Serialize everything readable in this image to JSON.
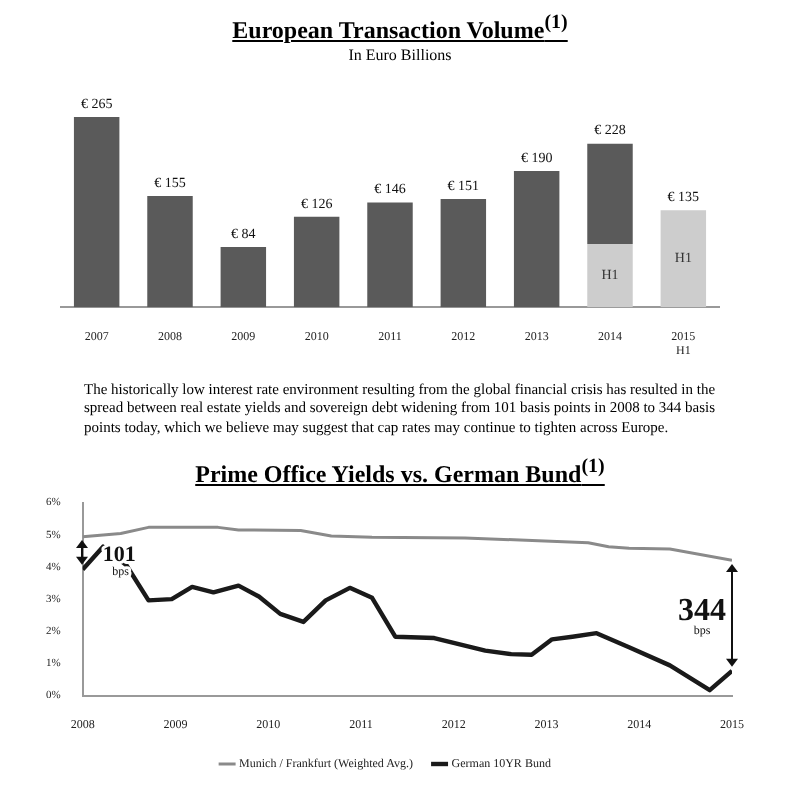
{
  "chart_data": [
    {
      "type": "bar",
      "title": "European Transaction Volume$^{(1)}$",
      "subtitle": "In Euro Billions",
      "stacked": true,
      "categories": [
        "2007",
        "2008",
        "2009",
        "2010",
        "2011",
        "2012",
        "2013",
        "2014",
        "2015 H1"
      ],
      "series": [
        {
          "color": "#cdcdcd",
          "values": [
            null,
            null,
            null,
            null,
            null,
            null,
            null,
            88,
            135
          ],
          "value_labels": [
            null,
            null,
            null,
            null,
            null,
            null,
            null,
            "H1",
            "H1"
          ]
        },
        {
          "color": "#5a5a5a",
          "values": [
            265,
            155,
            84,
            126,
            146,
            151,
            190,
            140,
            null
          ],
          "value_labels": [
            "€ 265",
            "€ 155",
            "€ 84",
            "€ 126",
            "€ 146",
            "€ 151",
            "€ 190",
            null,
            null
          ]
        }
      ],
      "totals": [
        null,
        null,
        null,
        null,
        null,
        null,
        null,
        "€ 228",
        "€ 135"
      ],
      "grid": false,
      "legend": false,
      "tick_labels": "x",
      "annotations": [
        "The historically low interest rate environment resulting from the global financial crisis has resulted in the spread between real estate yields and sovereign debt widening from 101 basis points in 2008 to 344 basis points today, which we believe may suggest that cap rates may continue to tighten across Europe."
      ]
    },
    {
      "type": "line",
      "title": "Prime Office Yields vs. German Bund$^{(1)}$",
      "xlim": [
        2008,
        2015
      ],
      "xticks": [
        2008,
        2009,
        2010,
        2011,
        2012,
        2013,
        2014,
        2015
      ],
      "ylim": [
        0,
        6
      ],
      "yticks": [
        {
          "value": 0,
          "label": "0%"
        },
        {
          "value": 1,
          "label": "1%"
        },
        {
          "value": 2,
          "label": "2%"
        },
        {
          "value": 3,
          "label": "3%"
        },
        {
          "value": 4,
          "label": "4%"
        },
        {
          "value": 5,
          "label": "5%"
        },
        {
          "value": 6,
          "label": "6%"
        }
      ],
      "grid": false,
      "legend": "bottom",
      "marker": "none",
      "line_style": "solid",
      "series": [
        {
          "name": "Munich / Frankfurt (Weighted Avg.)",
          "color": "#8a8a8a",
          "x": [
            2008,
            2008.41,
            2008.71,
            2009.46,
            2009.68,
            2010.35,
            2010.68,
            2011.12,
            2012.12,
            2012.78,
            2013.45,
            2013.67,
            2013.89,
            2014.33,
            2015
          ],
          "values": [
            4.94,
            5.04,
            5.23,
            5.23,
            5.15,
            5.13,
            4.96,
            4.92,
            4.9,
            4.83,
            4.75,
            4.63,
            4.58,
            4.56,
            4.21
          ]
        },
        {
          "name": "German 10YR Bund",
          "color": "#1a1a1a",
          "x": [
            2008,
            2008.22,
            2008.47,
            2008.71,
            2008.96,
            2009.18,
            2009.41,
            2009.68,
            2009.9,
            2010.13,
            2010.38,
            2010.62,
            2010.88,
            2011.12,
            2011.37,
            2011.79,
            2012.01,
            2012.34,
            2012.62,
            2012.84,
            2013.06,
            2013.28,
            2013.54,
            2013.89,
            2014.33,
            2014.76,
            2015
          ],
          "values": [
            3.92,
            4.63,
            4.06,
            2.96,
            3.0,
            3.38,
            3.21,
            3.42,
            3.08,
            2.54,
            2.29,
            2.96,
            3.35,
            3.04,
            1.83,
            1.79,
            1.63,
            1.4,
            1.29,
            1.27,
            1.75,
            1.83,
            1.94,
            1.5,
            0.94,
            0.17,
            0.77
          ]
        }
      ],
      "annotations": [
        {
          "text": "101 bps",
          "x": 2008,
          "y": 4.94
        },
        {
          "text": "344 bps",
          "x": 2015,
          "y": 4.21
        }
      ]
    }
  ]
}
